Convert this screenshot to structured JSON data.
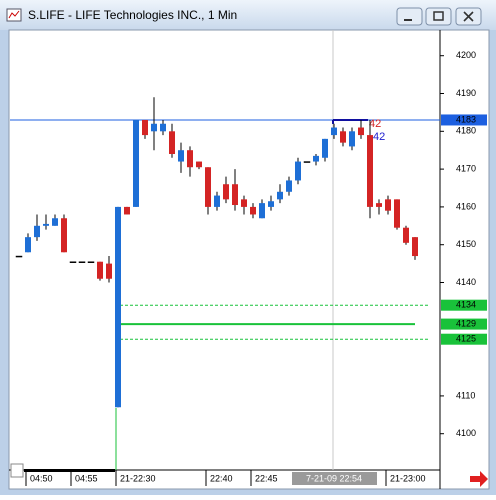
{
  "chart_data": {
    "type": "candlestick",
    "title": "S.LIFE - LIFE Technologies INC., 1 Min",
    "categories": [
      null,
      "04:50",
      null,
      null,
      null,
      null,
      "04:55",
      null,
      null,
      null,
      null,
      "21-22:30",
      null,
      null,
      null,
      null,
      null,
      null,
      null,
      null,
      null,
      "22:40",
      null,
      null,
      null,
      null,
      "22:45",
      null,
      null,
      null,
      null,
      null,
      null,
      null,
      null,
      "7-21-09 22:54",
      null,
      null,
      null,
      null,
      null,
      "21-23:00",
      null,
      null,
      null
    ],
    "open": [
      4147,
      4148,
      4152,
      4155,
      4155,
      4157,
      4145.5,
      4145.5,
      4145.5,
      4145.5,
      4145,
      4107,
      4160,
      4160,
      4183,
      4180,
      4180,
      4180,
      4172,
      4175,
      4172,
      4170.5,
      4160,
      4166,
      4166,
      4162,
      4160,
      4157,
      4160,
      4162,
      4164,
      4167,
      4172,
      4172,
      4173,
      4179,
      4180,
      4176,
      4181,
      4179,
      4161,
      4162,
      4162,
      4154.5,
      4152
    ],
    "high": [
      4147,
      4153,
      4158,
      4158,
      4158,
      4158,
      4145.5,
      4145.5,
      4145.5,
      4145.5,
      4147,
      4160,
      4160,
      4183,
      4183,
      4189,
      4183,
      4182,
      4177,
      4176,
      4172,
      4170.5,
      4164,
      4168,
      4170,
      4163,
      4161,
      4162,
      4163,
      4166,
      4168,
      4173,
      4172,
      4174,
      4178,
      4182,
      4181,
      4181,
      4183,
      4183,
      4162,
      4163,
      4162,
      4155,
      4152
    ],
    "low": [
      4147,
      4148,
      4151,
      4154,
      4155,
      4148,
      4145.5,
      4145.5,
      4145.5,
      4140.5,
      4140,
      4107,
      4158,
      4160,
      4178,
      4175,
      4179,
      4173,
      4169,
      4168,
      4170,
      4158,
      4159,
      4161,
      4159,
      4158,
      4157,
      4157,
      4159,
      4161,
      4163,
      4166,
      4172,
      4171,
      4172,
      4178,
      4176,
      4175,
      4178,
      4157,
      4158,
      4158,
      4154,
      4150,
      4146
    ],
    "close": [
      4147,
      4152,
      4155,
      4155.5,
      4157,
      4148,
      4145.5,
      4145.5,
      4145.5,
      4141,
      4141,
      4160,
      4158,
      4183,
      4179,
      4182,
      4182,
      4174,
      4175,
      4170.5,
      4170.5,
      4160,
      4163,
      4162,
      4160.5,
      4160,
      4158,
      4161,
      4161.5,
      4164,
      4167,
      4172,
      4172,
      4173.5,
      4178,
      4181,
      4177,
      4180,
      4179,
      4160,
      4160,
      4159,
      4154.5,
      4150.5,
      4147
    ],
    "up_color": "#1e6fd6",
    "down_color": "#d42424",
    "ylim": [
      4090.4,
      4206.8
    ],
    "yticks": [
      4100,
      4110,
      4140,
      4150,
      4160,
      4170,
      4180,
      4190,
      4200
    ],
    "price_markers": [
      {
        "value": 4183,
        "color": "#1c5fe0",
        "style": "solid"
      },
      {
        "value": 4134,
        "color": "#19c23a",
        "style": "dashed"
      },
      {
        "value": 4129,
        "color": "#19c23a",
        "style": "solid"
      },
      {
        "value": 4125,
        "color": "#19c23a",
        "style": "dashed"
      }
    ],
    "annotations": [
      {
        "text": "42",
        "color": "#d42424"
      },
      {
        "text": "42",
        "color": "#1c1cd0"
      }
    ]
  }
}
